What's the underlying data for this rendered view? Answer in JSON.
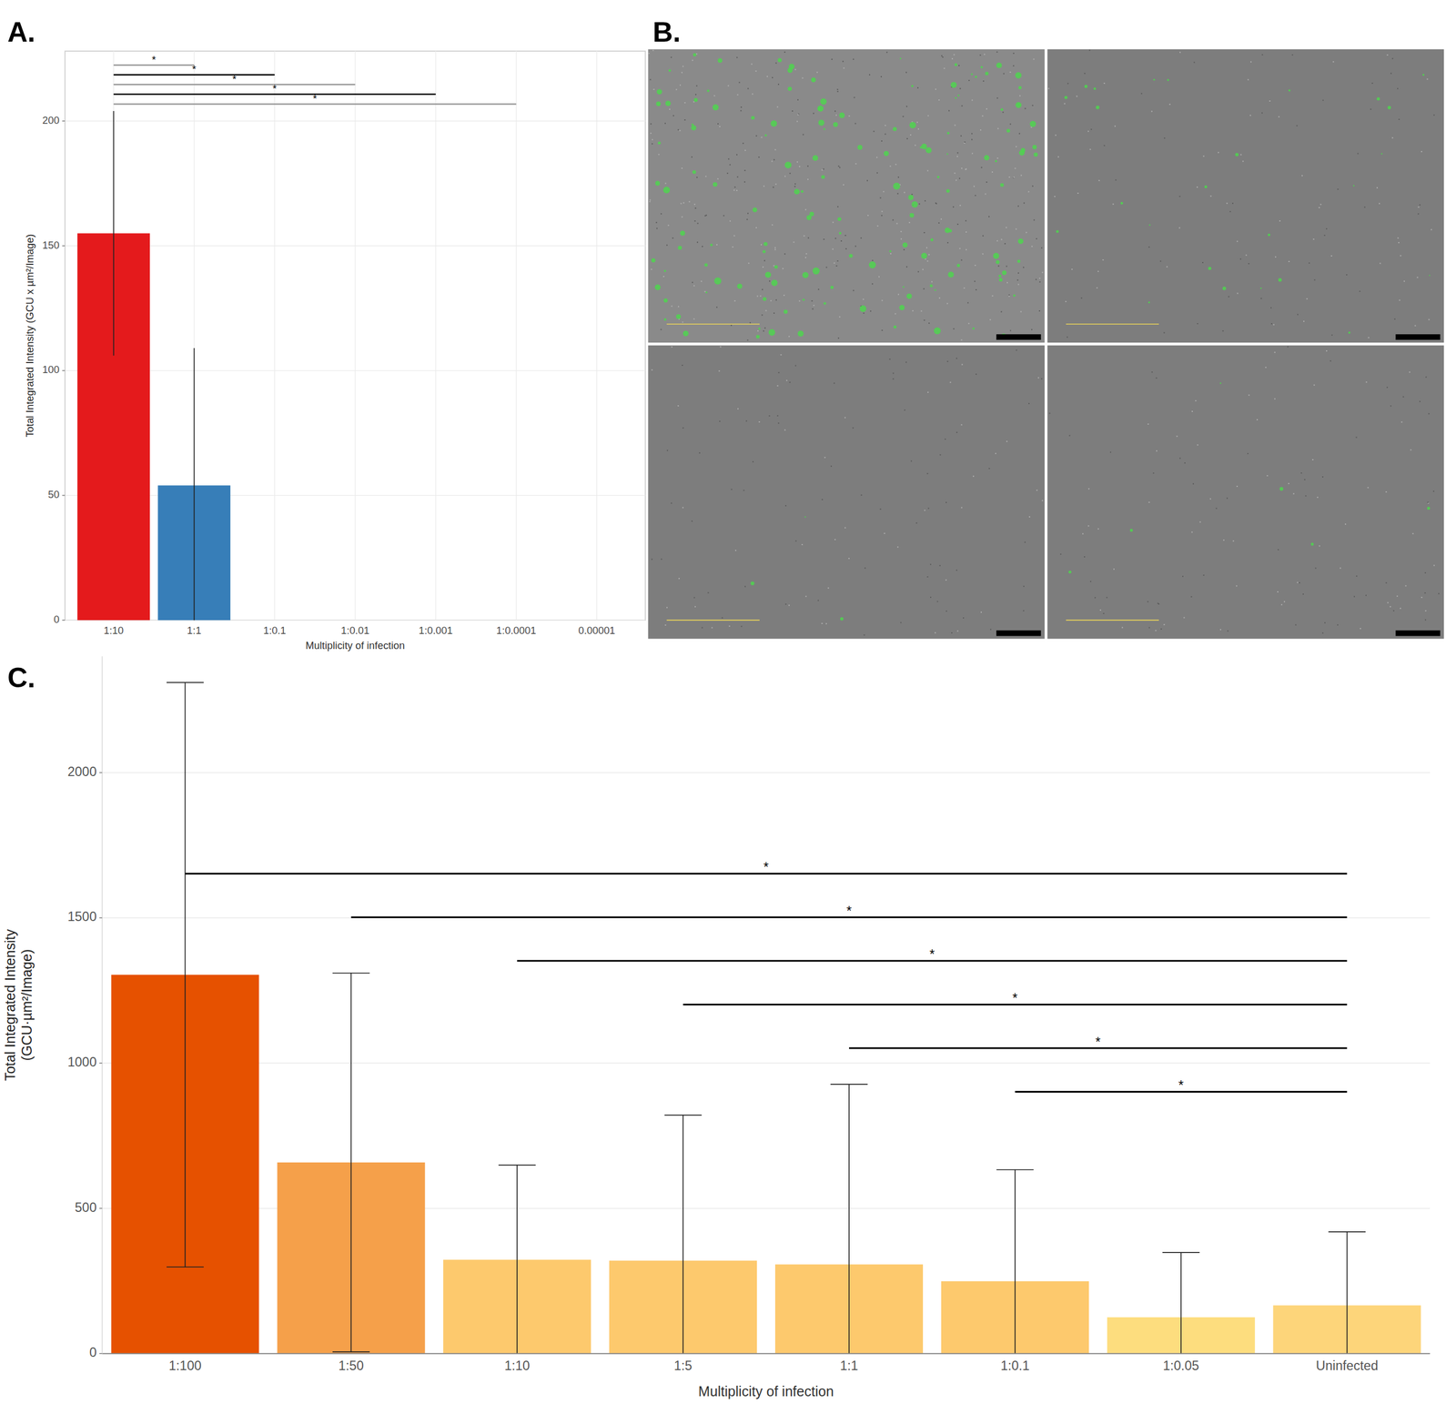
{
  "chart_data": [
    {
      "panel": "A.",
      "type": "bar",
      "x_label": "Multiplicity of infection",
      "y_label": "Total Integrated Intensity (GCU x µm²/Image)",
      "categories": [
        "1:10",
        "1:1",
        "1:0.1",
        "1:0.01",
        "1:0.001",
        "1:0.0001",
        "0.00001"
      ],
      "values": [
        155,
        54,
        0,
        0,
        0,
        0,
        0
      ],
      "errors": [
        49,
        55,
        0,
        0,
        0,
        0,
        0
      ],
      "colors": [
        "#e41a1c",
        "#377eb8",
        "#4daf4a",
        "#984ea3",
        "#ff7f00",
        "#ffff33",
        "#a65628"
      ],
      "ylim": [
        0,
        228
      ],
      "yticks": [
        0,
        50,
        100,
        150,
        200
      ],
      "grid": true,
      "significance": [
        {
          "from": "1:10",
          "to": "1:1",
          "label": "*"
        },
        {
          "from": "1:10",
          "to": "1:0.1",
          "label": "*"
        },
        {
          "from": "1:10",
          "to": "1:0.01",
          "label": "*"
        },
        {
          "from": "1:10",
          "to": "1:0.001",
          "label": "*"
        },
        {
          "from": "1:10",
          "to": "1:0.0001",
          "label": "*"
        }
      ]
    },
    {
      "panel": "B.",
      "type": "image"
    },
    {
      "panel": "C.",
      "type": "bar",
      "x_label": "Multiplicity of infection",
      "y_label": "Total Integrated Intensity (GCU·µm²/Image)",
      "categories": [
        "1:100",
        "1:50",
        "1:10",
        "1:5",
        "1:1",
        "1:0.1",
        "1:0.05",
        "Uninfected"
      ],
      "values": [
        1304,
        658,
        323,
        320,
        307,
        249,
        125,
        166
      ],
      "errors": [
        1006,
        652,
        326,
        501,
        620,
        384,
        223,
        253
      ],
      "colors": [
        "#e65100",
        "#f5a04a",
        "#fdc96d",
        "#fdc96d",
        "#fdc96d",
        "#fdc96d",
        "#fddd7e",
        "#fdd57a"
      ],
      "ylim": [
        0,
        2400
      ],
      "yticks": [
        0,
        500,
        1000,
        1500,
        2000
      ],
      "grid": "y",
      "significance": [
        {
          "from": "1:100",
          "to": "Uninfected",
          "label": "*"
        },
        {
          "from": "1:50",
          "to": "Uninfected",
          "label": "*"
        },
        {
          "from": "1:10",
          "to": "Uninfected",
          "label": "*"
        },
        {
          "from": "1:5",
          "to": "Uninfected",
          "label": "*"
        },
        {
          "from": "1:1",
          "to": "Uninfected",
          "label": "*"
        },
        {
          "from": "1:0.1",
          "to": "Uninfected",
          "label": "*"
        }
      ]
    }
  ]
}
